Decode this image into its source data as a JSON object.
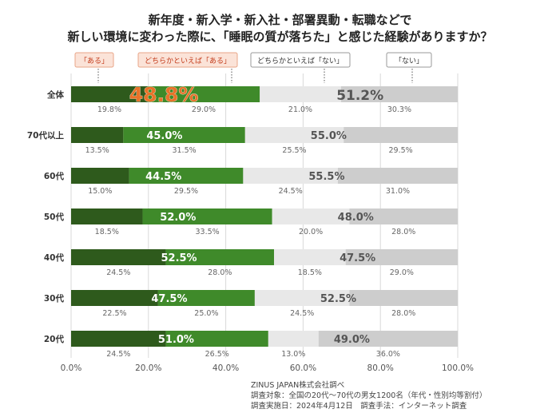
{
  "title": {
    "line1": "新年度・新入学・新入社・部署異動・転職などで",
    "line2": "新しい環境に変わった際に、「睡眠の質が落ちた」と感じた経験がありますか？"
  },
  "legend": [
    {
      "label": "「ある」",
      "color": "#c33b1a",
      "box_fill": "#fbe3d8",
      "border": "#e9a587"
    },
    {
      "label": "どちらかといえば「ある」",
      "color": "#c33b1a",
      "box_fill": "#fbe3d8",
      "border": "#e9a587"
    },
    {
      "label": "どちらかといえば「ない」",
      "color": "#333333",
      "box_fill": "#ffffff",
      "border": "#999999"
    },
    {
      "label": "「ない」",
      "color": "#333333",
      "box_fill": "#ffffff",
      "border": "#999999"
    }
  ],
  "colors": {
    "aru": "#2e5a1c",
    "yaya_aru": "#3f8a2a",
    "yaya_nai": "#e8e8e8",
    "nai": "#cdcdcd",
    "overall_highlight": "#e8732a",
    "grid": "#d8d8d8"
  },
  "chart_data": {
    "type": "bar",
    "orientation": "horizontal",
    "stacked": true,
    "categories": [
      "全体",
      "70代以上",
      "60代",
      "50代",
      "40代",
      "30代",
      "20代"
    ],
    "series": [
      {
        "name": "「ある」",
        "values": [
          19.8,
          13.5,
          15.0,
          18.5,
          24.5,
          22.5,
          24.5
        ]
      },
      {
        "name": "どちらかといえば「ある」",
        "values": [
          29.0,
          31.5,
          29.5,
          33.5,
          28.0,
          25.0,
          26.5
        ]
      },
      {
        "name": "どちらかといえば「ない」",
        "values": [
          21.0,
          25.5,
          24.5,
          20.0,
          18.5,
          24.5,
          13.0
        ]
      },
      {
        "name": "「ない」",
        "values": [
          30.3,
          29.5,
          31.0,
          28.0,
          29.0,
          28.0,
          36.0
        ]
      }
    ],
    "segment_labels": [
      [
        "19.8%",
        "29.0%",
        "21.0%",
        "30.3%"
      ],
      [
        "13.5%",
        "31.5%",
        "25.5%",
        "29.5%"
      ],
      [
        "15.0%",
        "29.5%",
        "24.5%",
        "31.0%"
      ],
      [
        "18.5%",
        "33.5%",
        "20.0%",
        "28.0%"
      ],
      [
        "24.5%",
        "28.0%",
        "18.5%",
        "29.0%"
      ],
      [
        "22.5%",
        "25.0%",
        "24.5%",
        "28.0%"
      ],
      [
        "24.5%",
        "26.5%",
        "13.0%",
        "36.0%"
      ]
    ],
    "totals_aru": [
      48.8,
      45.0,
      44.5,
      52.0,
      52.5,
      47.5,
      51.0
    ],
    "totals_nai": [
      51.2,
      55.0,
      55.5,
      48.0,
      47.5,
      52.5,
      49.0
    ],
    "totals_aru_labels": [
      "48.8%",
      "45.0%",
      "44.5%",
      "52.0%",
      "52.5%",
      "47.5%",
      "51.0%"
    ],
    "totals_nai_labels": [
      "51.2%",
      "55.0%",
      "55.5%",
      "48.0%",
      "47.5%",
      "52.5%",
      "49.0%"
    ],
    "xlim": [
      0,
      100
    ],
    "xticks": [
      0,
      20,
      40,
      60,
      80,
      100
    ],
    "xtick_labels": [
      "0.0%",
      "20.0%",
      "40.0%",
      "60.0%",
      "80.0%",
      "100.0%"
    ],
    "grid": true,
    "legend_position": "top"
  },
  "source": {
    "line1": "ZINUS JAPAN株式会社調べ",
    "line2": "調査対象：全国の20代～70代の男女1200名（年代・性別均等割付）",
    "line3": "調査実施日：2024年4月12日　調査手法：インターネット調査"
  }
}
